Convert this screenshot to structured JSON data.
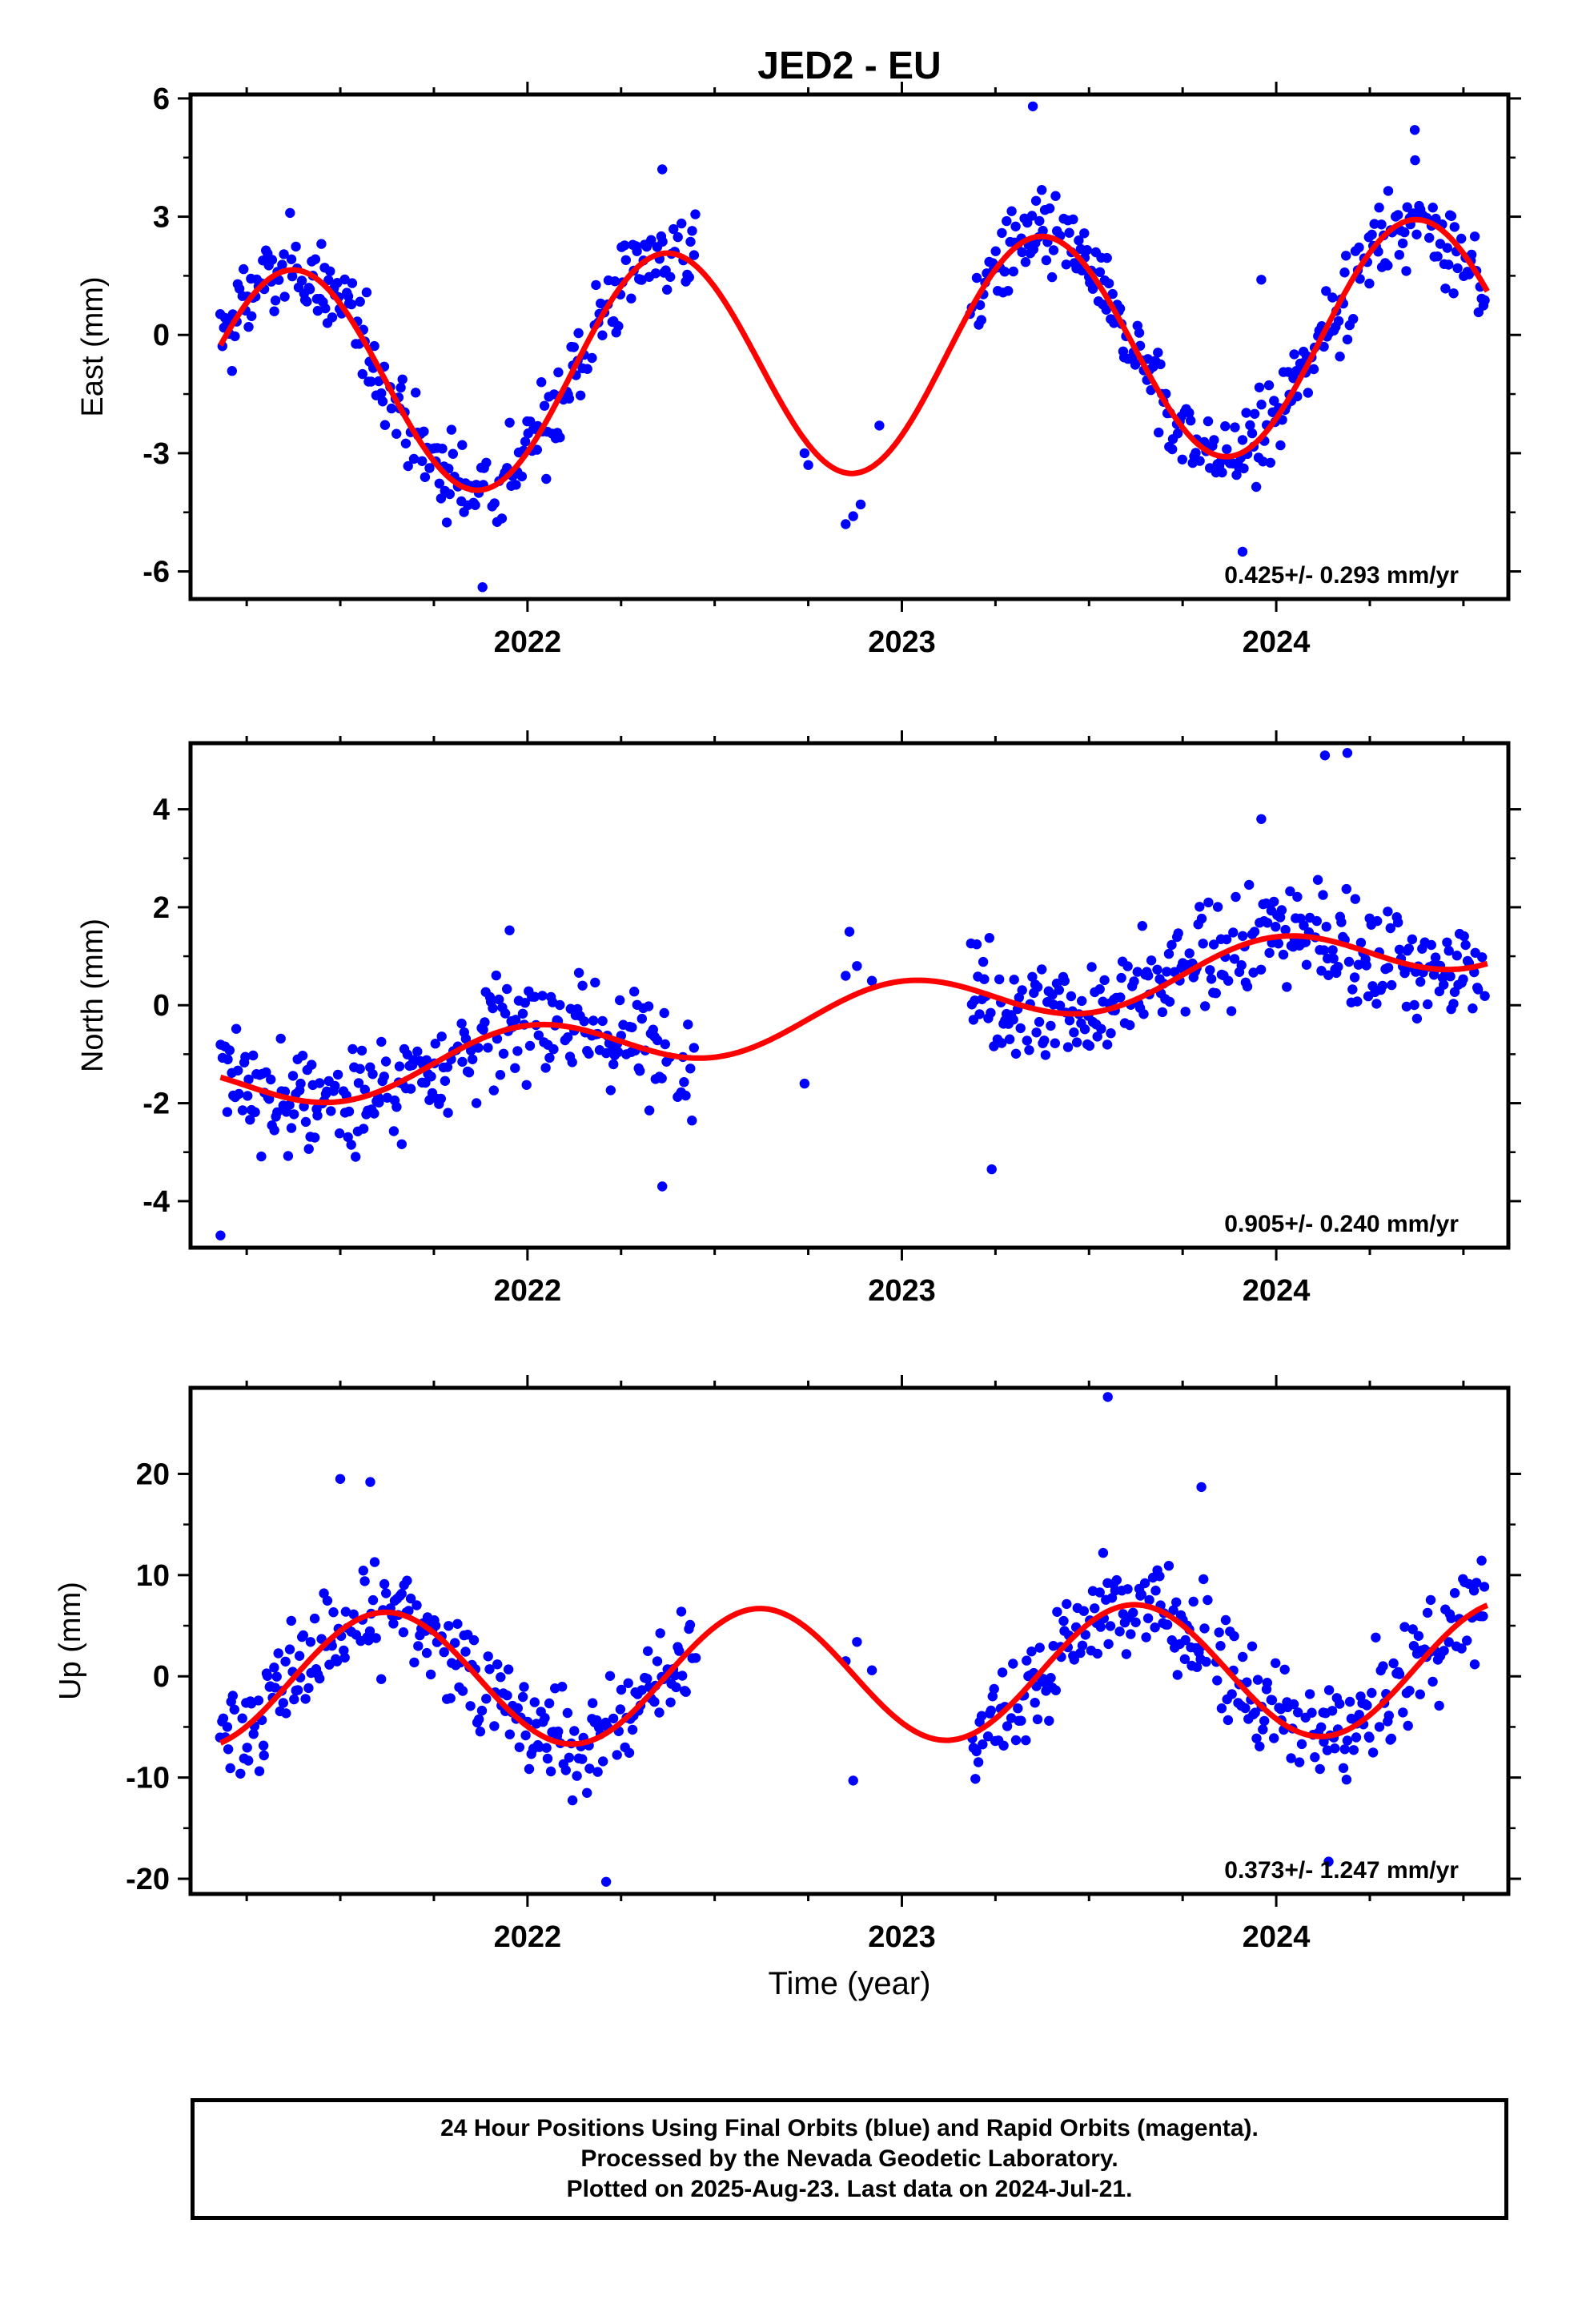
{
  "chart_data": {
    "title": "JED2 - EU",
    "type": "scatter",
    "x_range": [
      2021.1,
      2024.62
    ],
    "x_ticks": [
      "2022",
      "2023",
      "2024"
    ],
    "xlabel": "Time (year)",
    "colors": {
      "final": "#0000ff",
      "rapid": "#ff00ff",
      "fit": "#ff0000"
    },
    "panels": [
      {
        "name": "east",
        "ylabel": "East (mm)",
        "ylim": [
          -6.7,
          6.1
        ],
        "y_ticks": [
          6,
          3,
          0,
          -3,
          -6
        ],
        "rate_label": "0.425+/- 0.293 mm/yr",
        "fit": {
          "mean": -0.6,
          "slope": 0.425,
          "amp": 2.9,
          "peak": 2021.37
        },
        "gap": [
          2022.45,
          2023.18
        ],
        "gap_points": [
          {
            "x": 2022.74,
            "y": -3.0
          },
          {
            "x": 2022.75,
            "y": -3.3
          },
          {
            "x": 2022.85,
            "y": -4.8
          },
          {
            "x": 2022.87,
            "y": -4.6
          },
          {
            "x": 2022.89,
            "y": -4.3
          },
          {
            "x": 2022.94,
            "y": -2.3
          }
        ],
        "noise": 0.9,
        "outliers": [
          {
            "x": 2023.35,
            "y": 5.8
          },
          {
            "x": 2021.88,
            "y": -6.4
          },
          {
            "x": 2022.36,
            "y": 4.2
          },
          {
            "x": 2023.96,
            "y": 1.4
          },
          {
            "x": 2024.37,
            "y": 5.2
          },
          {
            "x": 2023.91,
            "y": -5.5
          }
        ]
      },
      {
        "name": "north",
        "ylabel": "North (mm)",
        "ylim": [
          -4.95,
          5.35
        ],
        "y_ticks": [
          4,
          2,
          0,
          -2,
          -4
        ],
        "rate_label": "0.905+/- 0.240 mm/yr",
        "fit": {
          "mean": -0.15,
          "slope": 0.905,
          "amp": 0.55,
          "peak": 2022.0
        },
        "gap": [
          2022.45,
          2023.18
        ],
        "gap_points": [
          {
            "x": 2022.74,
            "y": -1.6
          },
          {
            "x": 2022.85,
            "y": 0.6
          },
          {
            "x": 2022.86,
            "y": 1.5
          },
          {
            "x": 2022.88,
            "y": 0.8
          },
          {
            "x": 2022.92,
            "y": 0.5
          }
        ],
        "noise": 0.95,
        "outliers": [
          {
            "x": 2024.13,
            "y": 5.1
          },
          {
            "x": 2024.19,
            "y": 5.15
          },
          {
            "x": 2021.18,
            "y": -4.7
          },
          {
            "x": 2023.24,
            "y": -3.35
          },
          {
            "x": 2022.36,
            "y": -3.7
          },
          {
            "x": 2023.96,
            "y": 3.8
          }
        ]
      },
      {
        "name": "up",
        "ylabel": "Up (mm)",
        "ylim": [
          -21.5,
          28.5
        ],
        "y_ticks": [
          20,
          10,
          0,
          -10,
          -20
        ],
        "rate_label": "0.373+/- 1.247 mm/yr",
        "fit": {
          "mean": 0.2,
          "slope": 0.373,
          "amp": 6.6,
          "peak": 2021.62
        },
        "gap": [
          2022.45,
          2023.18
        ],
        "gap_points": [
          {
            "x": 2022.85,
            "y": 1.5
          },
          {
            "x": 2022.87,
            "y": -10.3
          },
          {
            "x": 2022.88,
            "y": 3.4
          },
          {
            "x": 2022.92,
            "y": 0.6
          }
        ],
        "noise": 4.2,
        "outliers": [
          {
            "x": 2023.55,
            "y": 27.6
          },
          {
            "x": 2021.5,
            "y": 19.5
          },
          {
            "x": 2021.58,
            "y": 19.2
          },
          {
            "x": 2022.21,
            "y": -20.3
          },
          {
            "x": 2024.14,
            "y": -18.3
          },
          {
            "x": 2023.8,
            "y": 18.7
          }
        ]
      }
    ]
  },
  "footer": {
    "line1": "24 Hour Positions Using Final Orbits (blue) and Rapid Orbits (magenta).",
    "line2": "Processed by the Nevada Geodetic Laboratory.",
    "line3": "Plotted on 2025-Aug-23. Last data on 2024-Jul-21."
  }
}
